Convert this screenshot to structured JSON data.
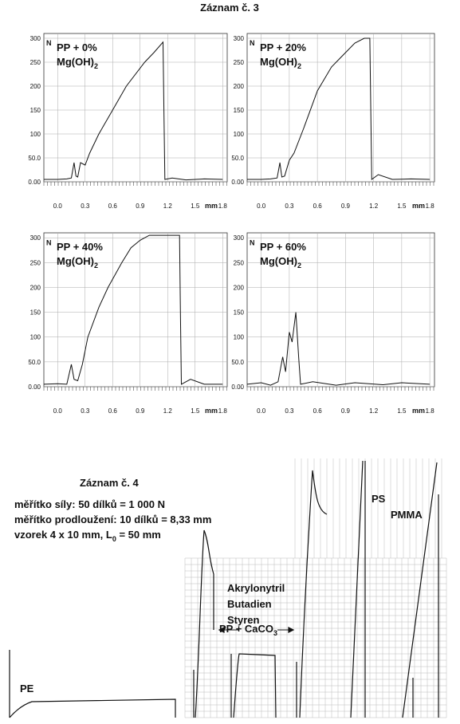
{
  "title": "Záznam č. 3",
  "chart_data": [
    {
      "type": "line",
      "label": "PP + 0%",
      "sublabel": "Mg(OH)",
      "subscript": "2",
      "xlabel": "mm",
      "ylabel": "N",
      "color": "#111",
      "x": [
        -0.15,
        0.0,
        0.1,
        0.15,
        0.18,
        0.2,
        0.22,
        0.25,
        0.3,
        0.35,
        0.45,
        0.6,
        0.75,
        0.95,
        1.05,
        1.15,
        1.16,
        1.17,
        1.25,
        1.4,
        1.6,
        1.8
      ],
      "values": [
        5,
        5,
        6,
        8,
        40,
        12,
        10,
        40,
        35,
        60,
        100,
        150,
        200,
        250,
        270,
        292,
        150,
        5,
        8,
        4,
        6,
        5
      ],
      "xlim": [
        -0.15,
        1.85
      ],
      "ylim": [
        0,
        310
      ],
      "xticks": [
        {
          "value": 0,
          "label": "0.0"
        },
        0.3,
        0.6,
        0.9,
        1.2,
        1.5,
        1.8
      ],
      "yticks": [
        {
          "value": 0,
          "label": "0.00"
        },
        {
          "value": 50,
          "label": "50.0"
        },
        100,
        150,
        200,
        250,
        300
      ]
    },
    {
      "type": "line",
      "label": "PP + 20%",
      "sublabel": "Mg(OH)",
      "subscript": "2",
      "xlabel": "mm",
      "ylabel": "N",
      "color": "#111",
      "x": [
        -0.15,
        0.0,
        0.1,
        0.17,
        0.2,
        0.22,
        0.25,
        0.3,
        0.35,
        0.45,
        0.6,
        0.75,
        0.85,
        1.0,
        1.1,
        1.16,
        1.17,
        1.18,
        1.25,
        1.4,
        1.6,
        1.8
      ],
      "values": [
        5,
        5,
        6,
        8,
        40,
        10,
        12,
        45,
        60,
        110,
        190,
        240,
        260,
        290,
        300,
        300,
        150,
        5,
        15,
        5,
        6,
        5
      ],
      "xlim": [
        -0.15,
        1.85
      ],
      "ylim": [
        0,
        310
      ],
      "xticks": [
        {
          "value": 0,
          "label": "0.0"
        },
        0.3,
        0.6,
        0.9,
        1.2,
        1.5,
        1.8
      ],
      "yticks": [
        {
          "value": 0,
          "label": "0.00"
        },
        {
          "value": 50,
          "label": "50.0"
        },
        100,
        150,
        200,
        250,
        300
      ]
    },
    {
      "type": "line",
      "label": "PP + 40%",
      "sublabel": "Mg(OH)",
      "subscript": "2",
      "xlabel": "mm",
      "ylabel": "N",
      "color": "#111",
      "x": [
        -0.15,
        0.0,
        0.1,
        0.15,
        0.18,
        0.22,
        0.27,
        0.33,
        0.45,
        0.55,
        0.7,
        0.8,
        0.9,
        1.0,
        1.2,
        1.33,
        1.34,
        1.35,
        1.45,
        1.6,
        1.8
      ],
      "values": [
        5,
        6,
        5,
        45,
        15,
        12,
        45,
        100,
        160,
        200,
        250,
        280,
        295,
        305,
        305,
        305,
        150,
        5,
        15,
        5,
        5
      ],
      "xlim": [
        -0.15,
        1.85
      ],
      "ylim": [
        0,
        310
      ],
      "xticks": [
        {
          "value": 0,
          "label": "0.0"
        },
        0.3,
        0.6,
        0.9,
        1.2,
        1.5,
        1.8
      ],
      "yticks": [
        {
          "value": 0,
          "label": "0.00"
        },
        {
          "value": 50,
          "label": "50.0"
        },
        100,
        150,
        200,
        250,
        300
      ]
    },
    {
      "type": "line",
      "label": "PP + 60%",
      "sublabel": "Mg(OH)",
      "subscript": "2",
      "xlabel": "mm",
      "ylabel": "N",
      "color": "#111",
      "x": [
        -0.15,
        0.0,
        0.1,
        0.18,
        0.23,
        0.26,
        0.3,
        0.33,
        0.37,
        0.4,
        0.42,
        0.55,
        0.8,
        1.0,
        1.3,
        1.5,
        1.8
      ],
      "values": [
        5,
        8,
        3,
        10,
        60,
        30,
        110,
        90,
        150,
        60,
        5,
        10,
        3,
        8,
        4,
        8,
        5
      ],
      "xlim": [
        -0.15,
        1.85
      ],
      "ylim": [
        0,
        310
      ],
      "xticks": [
        {
          "value": 0,
          "label": "0.0"
        },
        0.3,
        0.6,
        0.9,
        1.2,
        1.5,
        1.8
      ],
      "yticks": [
        {
          "value": 0,
          "label": "0.00"
        },
        {
          "value": 50,
          "label": "50.0"
        },
        100,
        150,
        200,
        250,
        300
      ]
    }
  ],
  "record": {
    "title": "Záznam č. 4",
    "lines": [
      "měřítko síly: 50 dílků = 1 000 N",
      "měřítko prodloužení: 10 dílků = 8,33 mm"
    ],
    "sample": "vzorek 4 x 10 mm, L",
    "sample_sub": "0",
    "sample_end": " = 50 mm",
    "labels": {
      "pe": "PE",
      "abs": [
        "Akrylonytril",
        "Butadien",
        "Styren"
      ],
      "pp": "PP + CaCO",
      "pp_sub": "3",
      "ps": "PS",
      "pmma": "PMMA"
    }
  }
}
